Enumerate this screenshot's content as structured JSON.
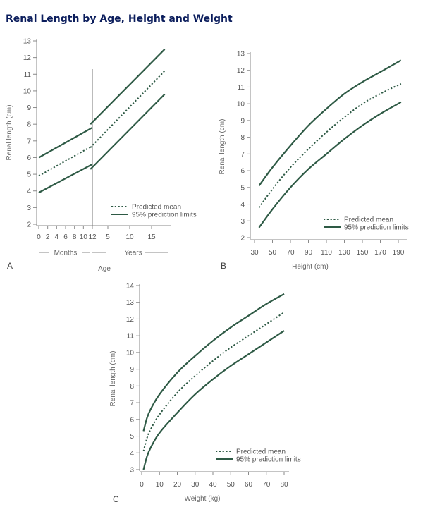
{
  "page": {
    "title": "Renal Length by Age, Height and Weight"
  },
  "colors": {
    "curve": "#2e5a45",
    "axis": "#8a8a8a",
    "text": "#555555"
  },
  "chart_data": [
    {
      "panel": "A",
      "type": "line",
      "ylabel": "Renal length (cm)",
      "xlabel": "Age",
      "ylim": [
        2,
        13
      ],
      "x_ticks_months": [
        "0",
        "2",
        "4",
        "6",
        "8",
        "10",
        "12"
      ],
      "x_ticks_years": [
        "5",
        "10",
        "15"
      ],
      "y_ticks": [
        "2",
        "3",
        "4",
        "5",
        "6",
        "7",
        "8",
        "9",
        "10",
        "11",
        "12",
        "13"
      ],
      "group_labels": {
        "months": "Months",
        "years": "Years"
      },
      "legend": {
        "mean": "Predicted mean",
        "limits": "95% prediction limits",
        "position": "bottom-right"
      },
      "series": [
        {
          "role": "upper",
          "segments": [
            [
              {
                "unit": "months",
                "x": 0,
                "y": 6.0
              },
              {
                "unit": "months",
                "x": 12,
                "y": 7.8
              }
            ],
            [
              {
                "unit": "years",
                "x": 1,
                "y": 8.0
              },
              {
                "unit": "years",
                "x": 18,
                "y": 12.5
              }
            ]
          ]
        },
        {
          "role": "mean",
          "segments": [
            [
              {
                "unit": "months",
                "x": 0,
                "y": 4.9
              },
              {
                "unit": "months",
                "x": 12,
                "y": 6.7
              }
            ],
            [
              {
                "unit": "years",
                "x": 1,
                "y": 6.6
              },
              {
                "unit": "years",
                "x": 18,
                "y": 11.2
              }
            ]
          ]
        },
        {
          "role": "lower",
          "segments": [
            [
              {
                "unit": "months",
                "x": 0,
                "y": 3.9
              },
              {
                "unit": "months",
                "x": 12,
                "y": 5.6
              }
            ],
            [
              {
                "unit": "years",
                "x": 1,
                "y": 5.3
              },
              {
                "unit": "years",
                "x": 18,
                "y": 9.8
              }
            ]
          ]
        }
      ]
    },
    {
      "panel": "B",
      "type": "line",
      "ylabel": "Renal length (cm)",
      "xlabel": "Height (cm)",
      "xlim": [
        30,
        190
      ],
      "ylim": [
        2,
        13
      ],
      "x_ticks": [
        "30",
        "50",
        "70",
        "90",
        "110",
        "130",
        "150",
        "170",
        "190"
      ],
      "y_ticks": [
        "2",
        "3",
        "4",
        "5",
        "6",
        "7",
        "8",
        "9",
        "10",
        "11",
        "12",
        "13"
      ],
      "legend": {
        "mean": "Predicted mean",
        "limits": "95% prediction limits",
        "position": "bottom-right"
      },
      "series": [
        {
          "role": "upper",
          "x": [
            35,
            50,
            70,
            90,
            110,
            130,
            150,
            170,
            193
          ],
          "y": [
            5.1,
            6.2,
            7.5,
            8.7,
            9.7,
            10.6,
            11.3,
            11.9,
            12.6
          ]
        },
        {
          "role": "mean",
          "x": [
            35,
            50,
            70,
            90,
            110,
            130,
            150,
            170,
            193
          ],
          "y": [
            3.8,
            4.9,
            6.2,
            7.3,
            8.3,
            9.2,
            10.0,
            10.6,
            11.2
          ]
        },
        {
          "role": "lower",
          "x": [
            35,
            50,
            70,
            90,
            110,
            130,
            150,
            170,
            193
          ],
          "y": [
            2.6,
            3.7,
            5.0,
            6.1,
            7.0,
            7.9,
            8.7,
            9.4,
            10.1
          ]
        }
      ]
    },
    {
      "panel": "C",
      "type": "line",
      "ylabel": "Renal length (cm)",
      "xlabel": "Weight (kg)",
      "xlim": [
        0,
        80
      ],
      "ylim": [
        3,
        14
      ],
      "x_ticks": [
        "0",
        "10",
        "20",
        "30",
        "40",
        "50",
        "60",
        "70",
        "80"
      ],
      "y_ticks": [
        "3",
        "4",
        "5",
        "6",
        "7",
        "8",
        "9",
        "10",
        "11",
        "12",
        "13",
        "14"
      ],
      "legend": {
        "mean": "Predicted mean",
        "limits": "95% prediction limits",
        "position": "bottom-right"
      },
      "series": [
        {
          "role": "upper",
          "x": [
            1,
            3,
            5,
            10,
            20,
            30,
            40,
            50,
            60,
            70,
            80
          ],
          "y": [
            5.3,
            6.1,
            6.6,
            7.5,
            8.8,
            9.8,
            10.7,
            11.5,
            12.2,
            12.9,
            13.5
          ]
        },
        {
          "role": "mean",
          "x": [
            1,
            3,
            5,
            10,
            20,
            30,
            40,
            50,
            60,
            70,
            80
          ],
          "y": [
            4.1,
            4.9,
            5.4,
            6.3,
            7.6,
            8.6,
            9.5,
            10.3,
            11.0,
            11.7,
            12.4
          ]
        },
        {
          "role": "lower",
          "x": [
            1,
            3,
            5,
            10,
            20,
            30,
            40,
            50,
            60,
            70,
            80
          ],
          "y": [
            3.0,
            3.8,
            4.3,
            5.2,
            6.4,
            7.5,
            8.4,
            9.2,
            9.9,
            10.6,
            11.3
          ]
        }
      ]
    }
  ]
}
